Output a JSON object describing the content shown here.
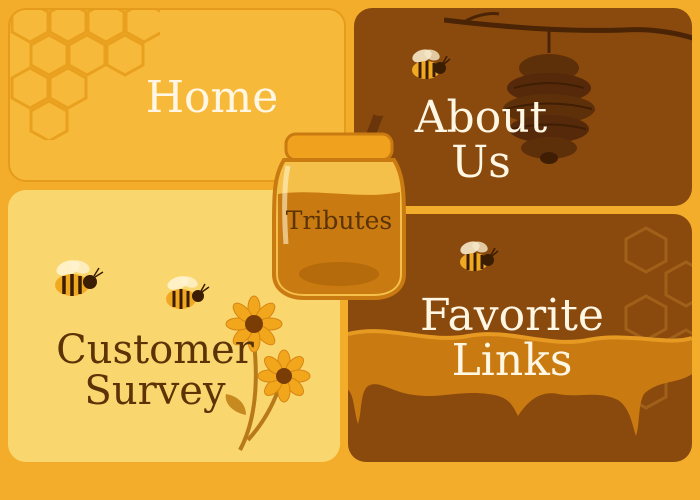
{
  "nav": {
    "home": "Home",
    "about_line1": "About",
    "about_line2": "Us",
    "tributes": "Tributes",
    "survey_line1": "Customer",
    "survey_line2": "Survey",
    "links_line1": "Favorite",
    "links_line2": "Links"
  },
  "colors": {
    "background": "#f3ad2a",
    "home_panel": "#f7b93a",
    "dark_panel": "#8a4a0d",
    "survey_panel": "#fad76e",
    "honey": "#c97a10",
    "text_light": "#fff7e3",
    "text_dark": "#5b3307"
  },
  "icons": [
    "honeycomb-icon",
    "beehive-icon",
    "bee-icon",
    "honey-jar-icon",
    "flower-icon"
  ]
}
